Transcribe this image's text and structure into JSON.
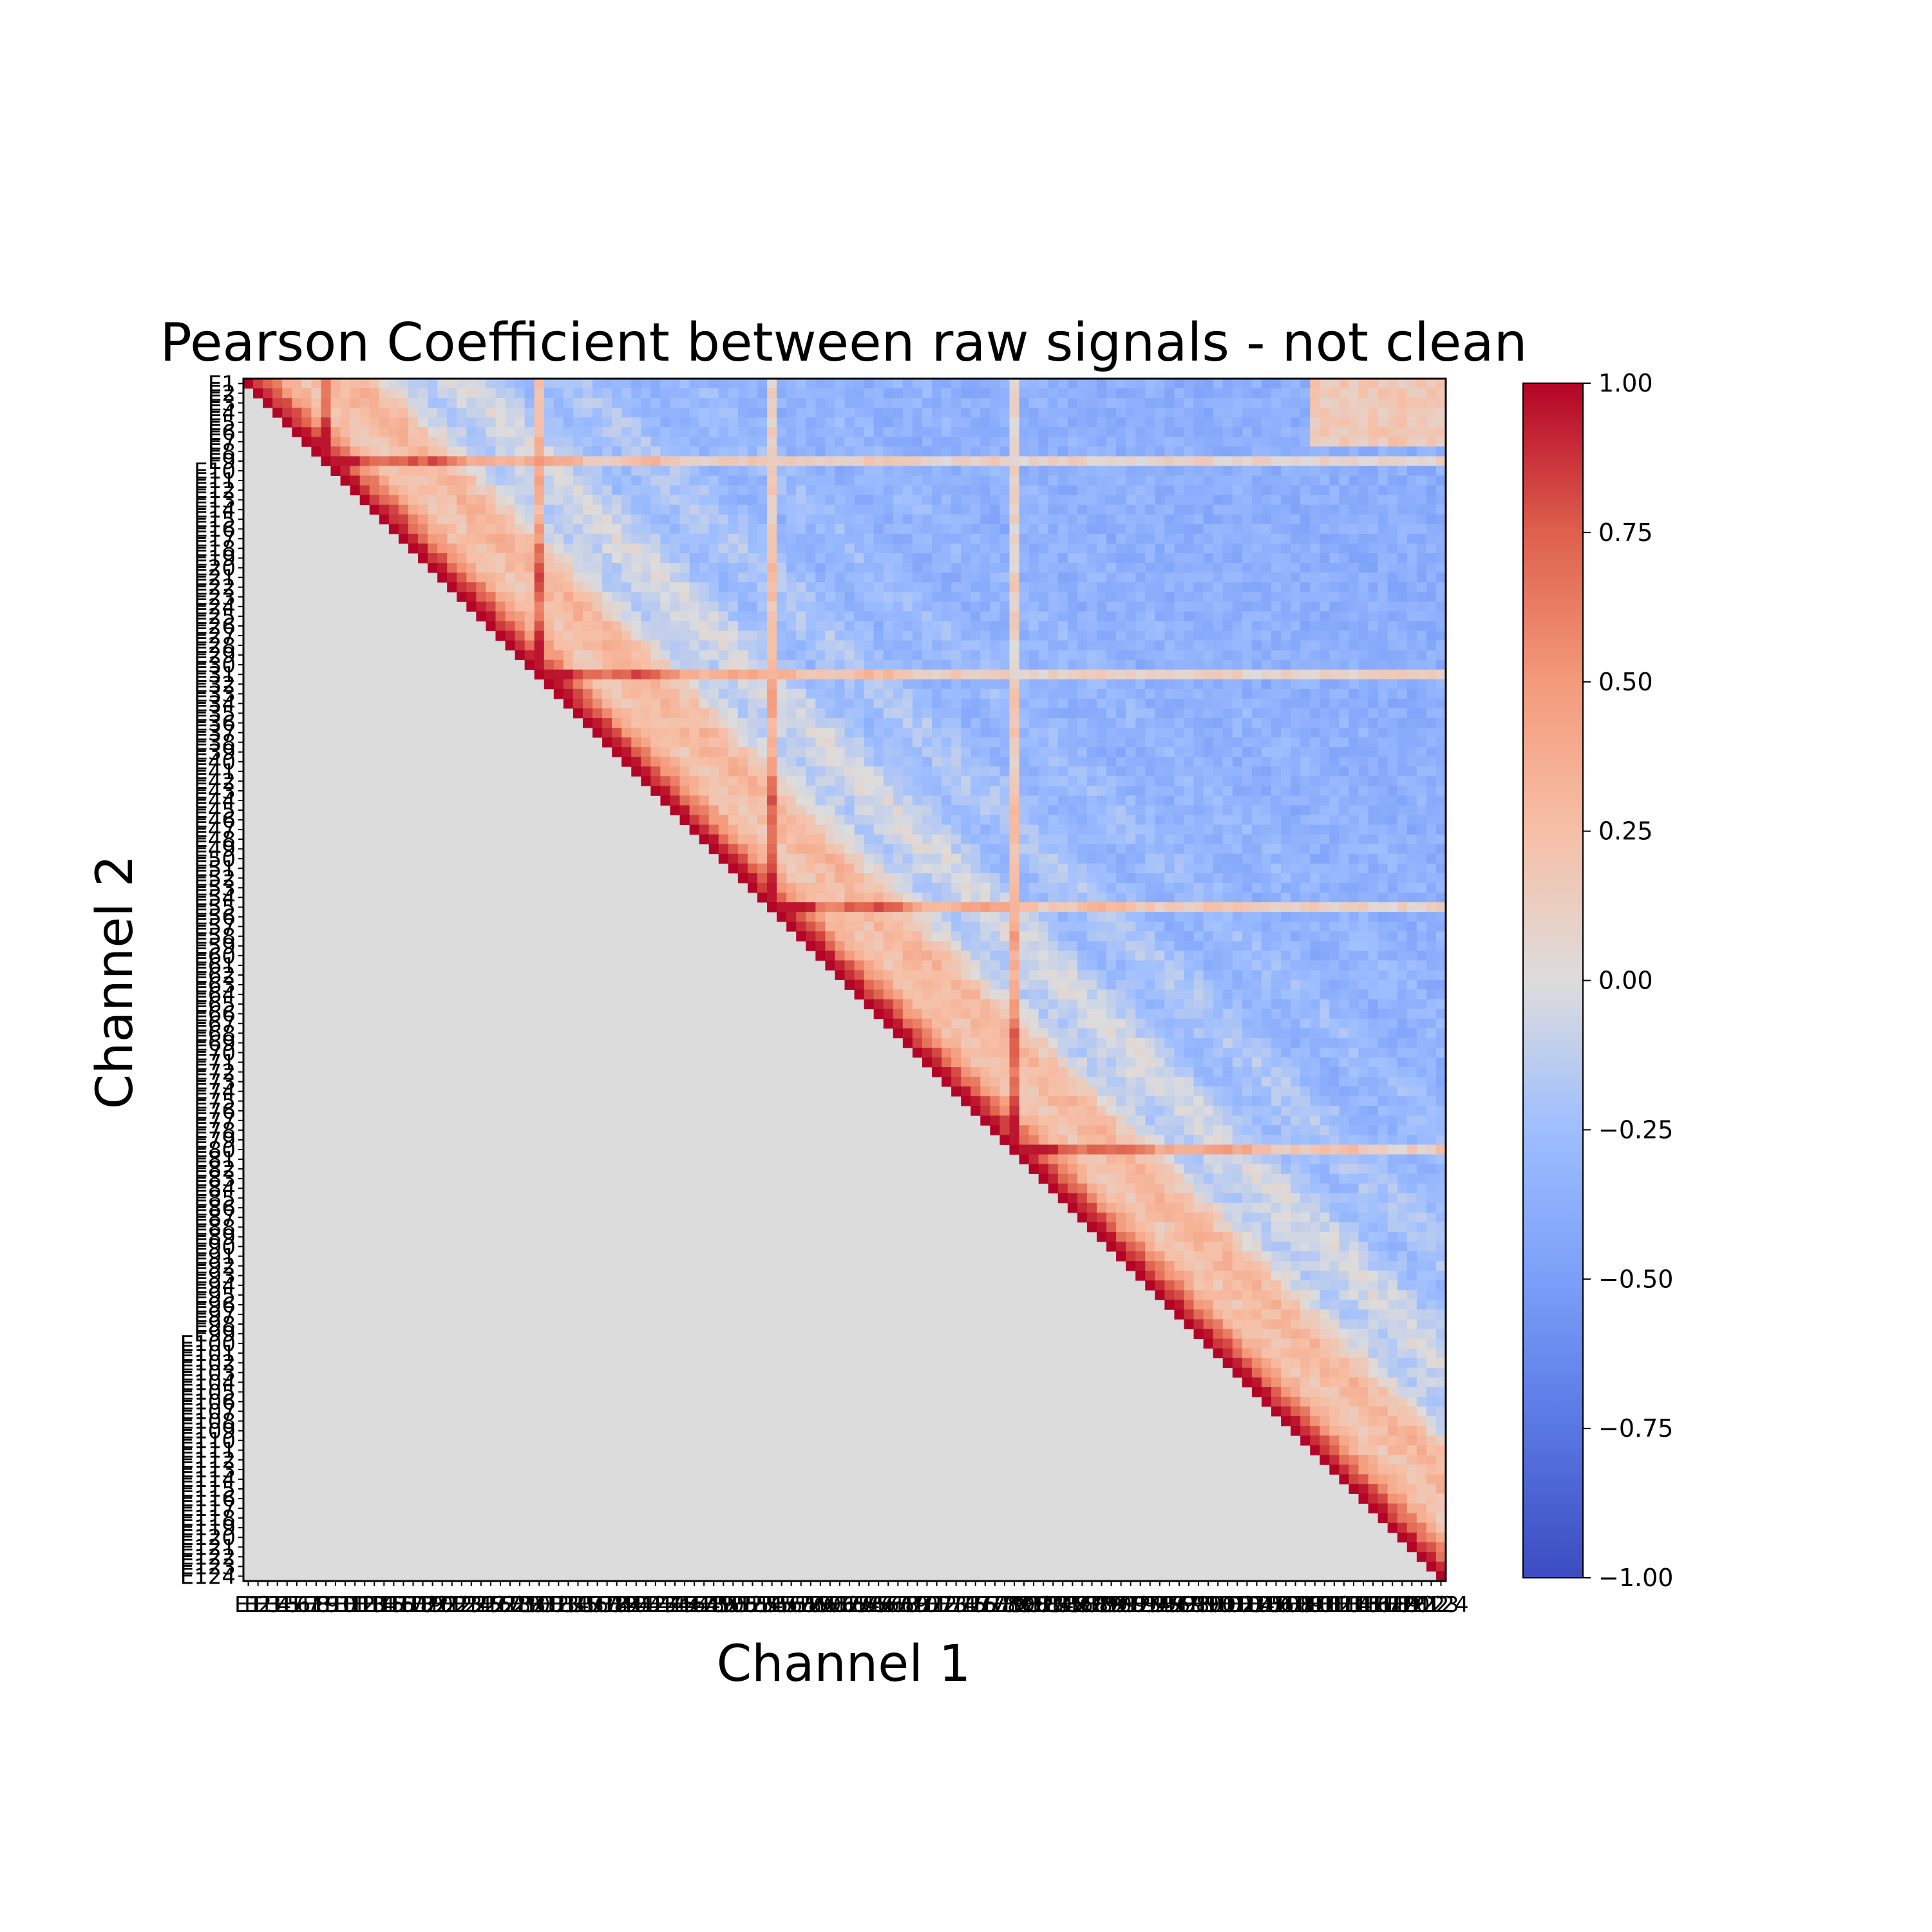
{
  "chart_data": {
    "type": "heatmap",
    "title": "Pearson Coefficient between raw signals - not clean",
    "xlabel": "Channel 1",
    "ylabel": "Channel 2",
    "n_channels": 124,
    "channel_prefix": "E",
    "matrix_shape": "upper-triangular",
    "lower_triangle_value": 0,
    "diagonal_value": 1.0,
    "value_range": [
      -1.0,
      1.0
    ],
    "colormap": "coolwarm",
    "colorbar": {
      "ticks": [
        1.0,
        0.75,
        0.5,
        0.25,
        0.0,
        -0.25,
        -0.5,
        -0.75,
        -1.0
      ],
      "tick_labels": [
        "1.00",
        "0.75",
        "0.50",
        "0.25",
        "0.00",
        "−0.25",
        "−0.50",
        "−0.75",
        "−1.00"
      ]
    },
    "annotations": "each cell annotated with its coefficient in tiny text (illegible at this resolution)",
    "approximate_structure": {
      "near_diagonal_correlation": "0.5 to 0.9",
      "far_from_diagonal_correlation": "-0.1 to -0.6",
      "outlier_channels_high_correlation": [
        "E9",
        "E31",
        "E55",
        "E80"
      ]
    }
  }
}
